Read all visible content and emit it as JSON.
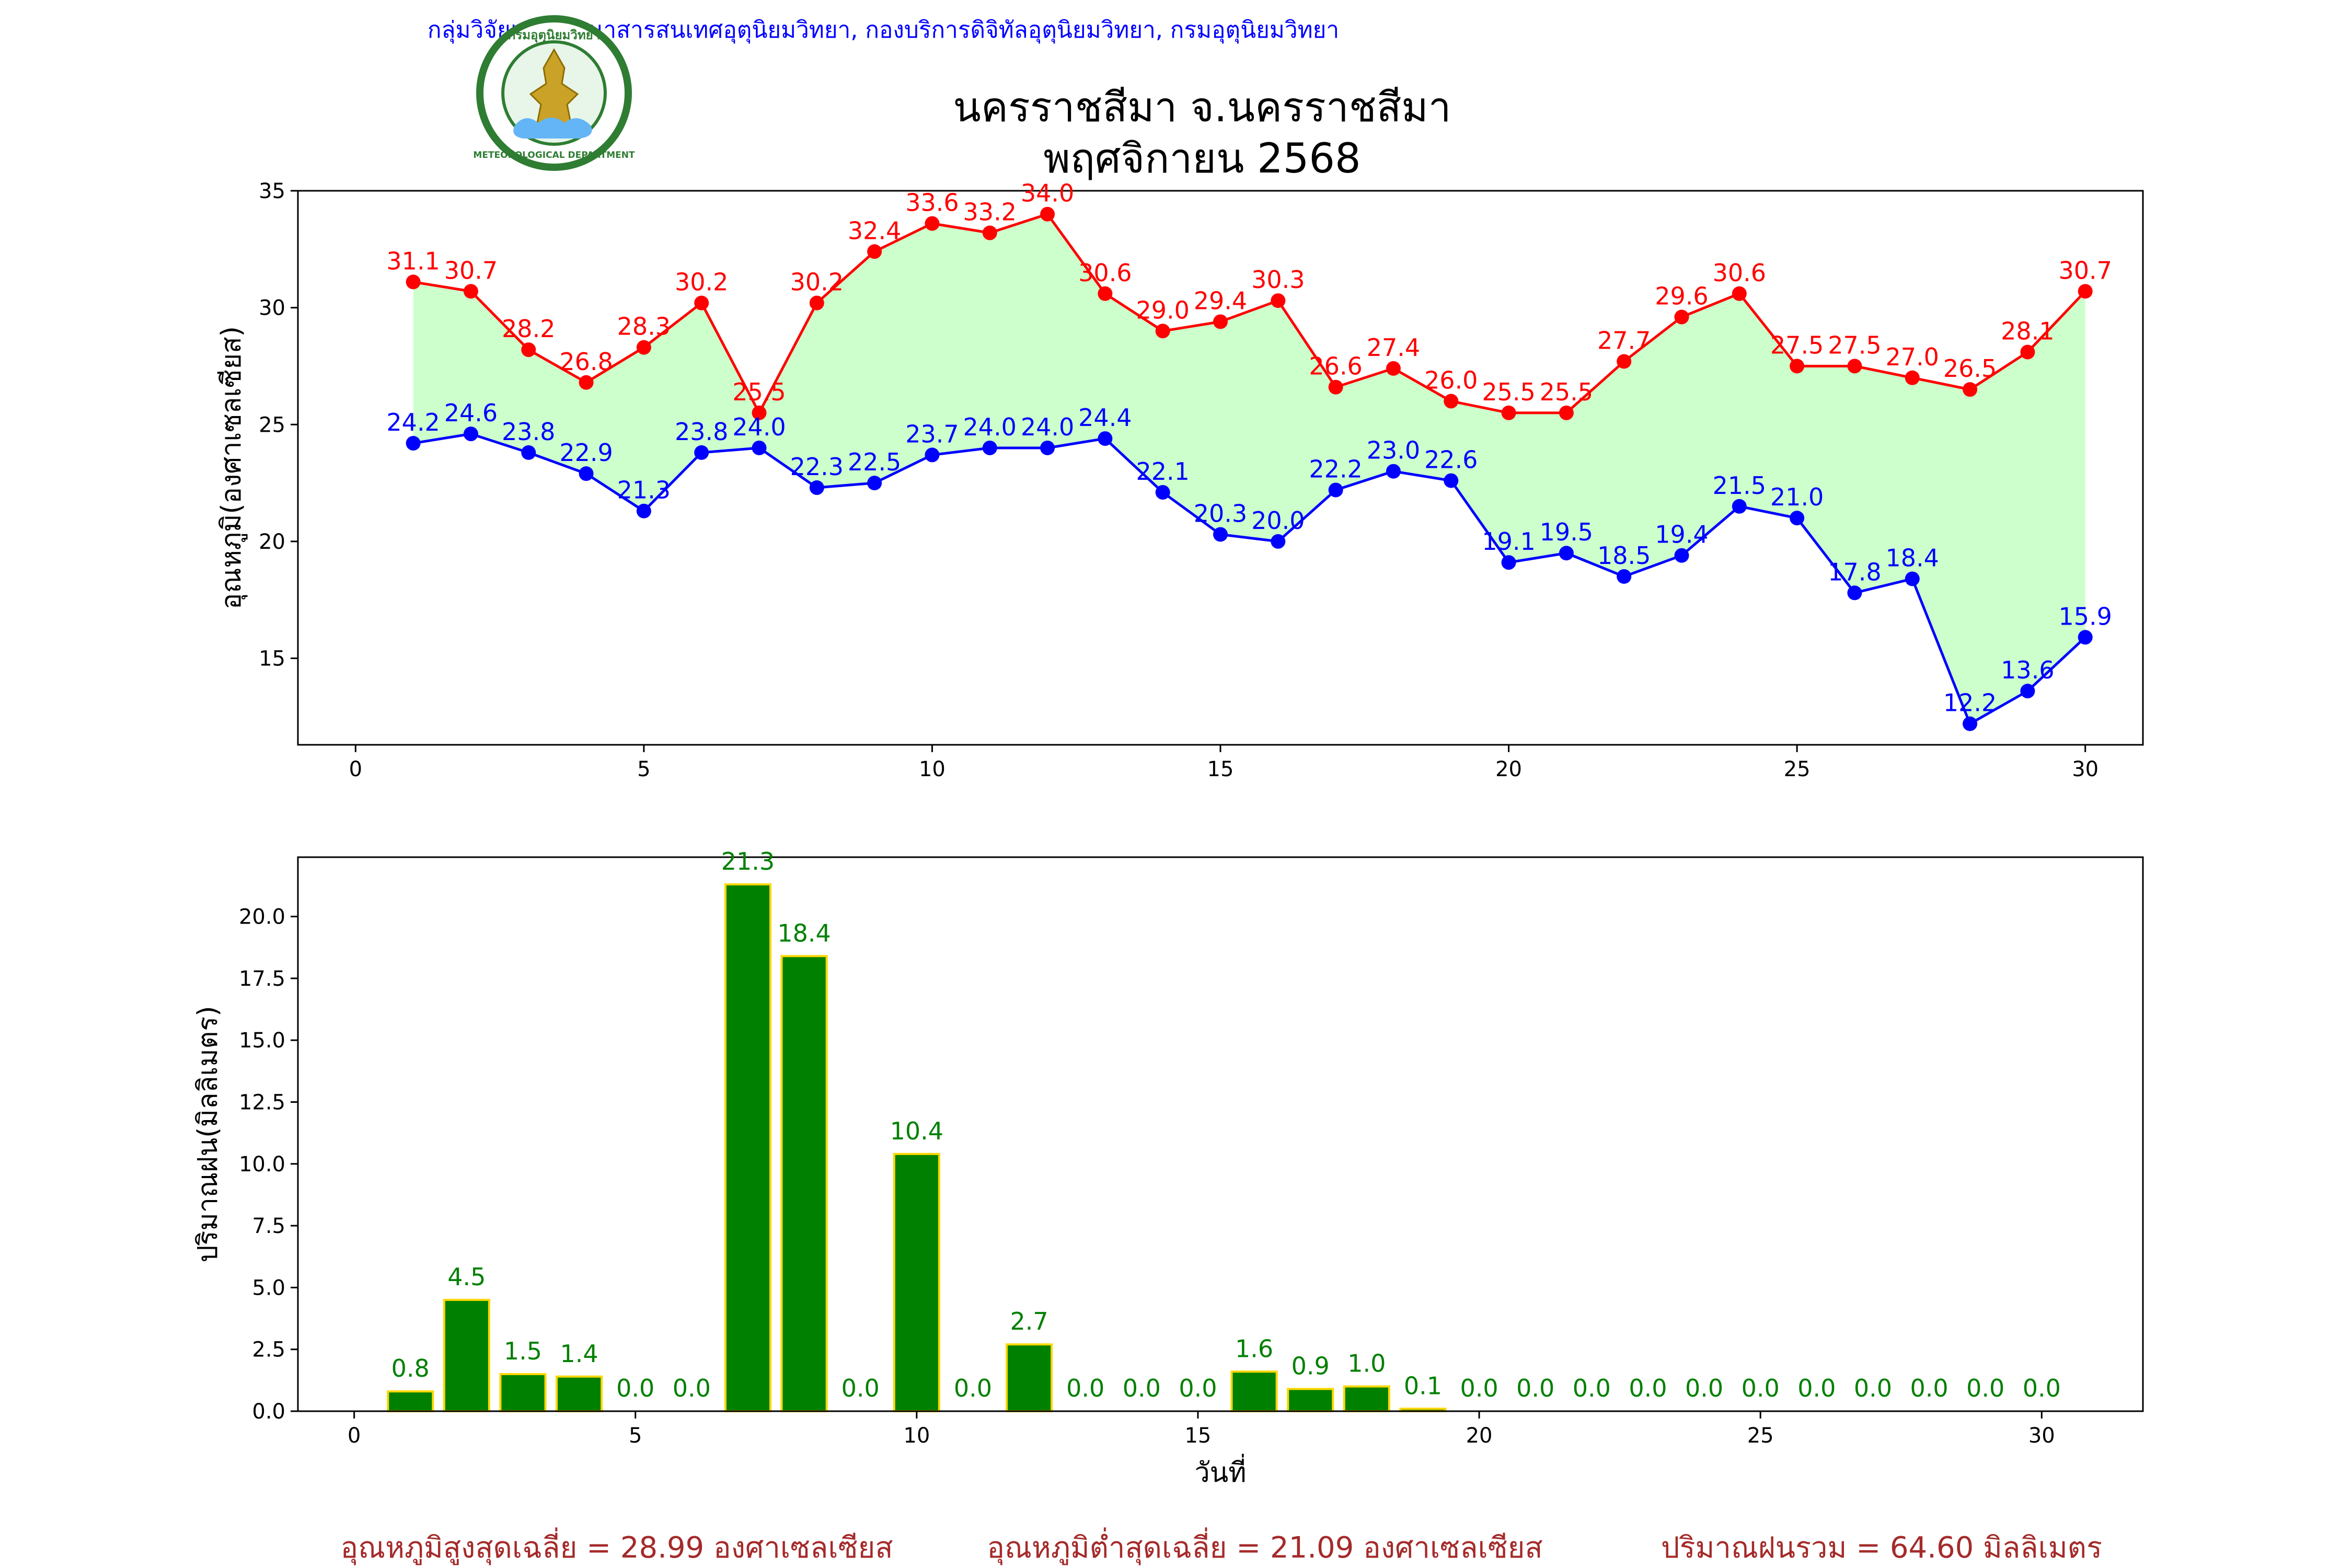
{
  "header": {
    "agency": "กลุ่มวิจัยและพัฒนาสารสนเทศอุตุนิยมวิทยา, กองบริการดิจิทัลอุตุนิยมวิทยา, กรมอุตุนิยมวิทยา",
    "title_line1": "นครราชสีมา จ.นครราชสีมา",
    "title_line2": "พฤศจิกายน 2568",
    "logo_top_text": "กรมอุตุนิยมวิทยา",
    "logo_bottom_text": "METEOROLOGICAL DEPARTMENT"
  },
  "footer": {
    "avg_max": "อุณหภูมิสูงสุดเฉลี่ย = 28.99 องศาเซลเซียส",
    "avg_min": "อุณหภูมิต่ำสุดเฉลี่ย = 21.09 องศาเซลเซียส",
    "total_rain": "ปริมาณฝนรวม = 64.60 มิลลิเมตร"
  },
  "colors": {
    "max_line": "#ff0000",
    "min_line": "#0000ff",
    "fill": "#ccffcc",
    "bar": "#008000",
    "bar_edge": "#ffd700",
    "rain_label": "#008000",
    "agency": "#0000ff",
    "footer": "#a52a2a"
  },
  "chart_data": [
    {
      "type": "line",
      "ylabel": "อุณหภูมิ(องศาเซลเซียส)",
      "xlabel": "",
      "xlim": [
        -1,
        31
      ],
      "ylim": [
        11.3,
        35
      ],
      "xticks": [
        0,
        5,
        10,
        15,
        20,
        25,
        30
      ],
      "yticks": [
        15,
        20,
        25,
        30,
        35
      ],
      "x": [
        1,
        2,
        3,
        4,
        5,
        6,
        7,
        8,
        9,
        10,
        11,
        12,
        13,
        14,
        15,
        16,
        17,
        18,
        19,
        20,
        21,
        22,
        23,
        24,
        25,
        26,
        27,
        28,
        29,
        30
      ],
      "series": [
        {
          "key": "max",
          "values": [
            31.1,
            30.7,
            28.2,
            26.8,
            28.3,
            30.2,
            25.5,
            30.2,
            32.4,
            33.6,
            33.2,
            34.0,
            30.6,
            29.0,
            29.4,
            30.3,
            26.6,
            27.4,
            26.0,
            25.5,
            25.5,
            27.7,
            29.6,
            30.6,
            27.5,
            27.5,
            27.0,
            26.5,
            28.1,
            30.7
          ]
        },
        {
          "key": "min",
          "values": [
            24.2,
            24.6,
            23.8,
            22.9,
            21.3,
            23.8,
            24.0,
            22.3,
            22.5,
            23.7,
            24.0,
            24.0,
            24.4,
            22.1,
            20.3,
            20.0,
            22.2,
            23.0,
            22.6,
            19.1,
            19.5,
            18.5,
            19.4,
            21.5,
            21.0,
            17.8,
            18.4,
            12.2,
            13.6,
            15.9
          ]
        }
      ]
    },
    {
      "type": "bar",
      "ylabel": "ปริมาณฝน(มิลลิเมตร)",
      "xlabel": "วันที่",
      "xlim": [
        -1,
        31.8
      ],
      "ylim": [
        0,
        22.4
      ],
      "xticks": [
        0,
        5,
        10,
        15,
        20,
        25,
        30
      ],
      "yticks": [
        0.0,
        2.5,
        5.0,
        7.5,
        10.0,
        12.5,
        15.0,
        17.5,
        20.0
      ],
      "x": [
        1,
        2,
        3,
        4,
        5,
        6,
        7,
        8,
        9,
        10,
        11,
        12,
        13,
        14,
        15,
        16,
        17,
        18,
        19,
        20,
        21,
        22,
        23,
        24,
        25,
        26,
        27,
        28,
        29,
        30
      ],
      "values": [
        0.8,
        4.5,
        1.5,
        1.4,
        0.0,
        0.0,
        21.3,
        18.4,
        0.0,
        10.4,
        0.0,
        2.7,
        0.0,
        0.0,
        0.0,
        1.6,
        0.9,
        1.0,
        0.1,
        0.0,
        0.0,
        0.0,
        0.0,
        0.0,
        0.0,
        0.0,
        0.0,
        0.0,
        0.0,
        0.0
      ]
    }
  ]
}
